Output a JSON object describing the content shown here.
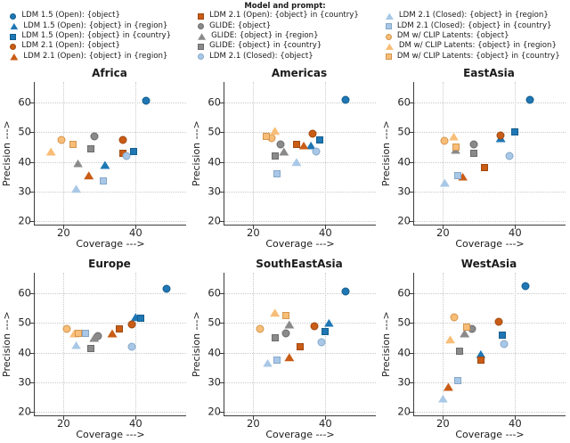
{
  "figure": {
    "legend": {
      "title": "Model and prompt:",
      "columns": [
        [
          0,
          1,
          2,
          3,
          4
        ],
        [
          5,
          6,
          7,
          8,
          9
        ],
        [
          10,
          11,
          12,
          13,
          14
        ]
      ]
    }
  },
  "chart_data": {
    "type": "scatter",
    "legend_title": "Model and prompt:",
    "xlabel": "Coverage --->",
    "ylabel": "Precision --->",
    "xticks": [
      20,
      40
    ],
    "yticks": [
      20,
      30,
      40,
      50,
      60
    ],
    "xlim": [
      12,
      54
    ],
    "ylim": [
      19,
      67
    ],
    "grid": "dotted",
    "series": [
      {
        "id": "ldm15-object",
        "label": "LDM 1.5 (Open): {object}",
        "marker": "circle",
        "color": "#1f77b4",
        "edge": "#155e8e"
      },
      {
        "id": "ldm15-region",
        "label": "LDM 1.5 (Open): {object} in {region}",
        "marker": "triangle",
        "color": "#1f77b4",
        "edge": "#155e8e"
      },
      {
        "id": "ldm15-country",
        "label": "LDM 1.5 (Open): {object} in {country}",
        "marker": "square",
        "color": "#1f77b4",
        "edge": "#155e8e"
      },
      {
        "id": "ldm21o-object",
        "label": "LDM 2.1 (Open): {object}",
        "marker": "circle",
        "color": "#c95c16",
        "edge": "#a1490f"
      },
      {
        "id": "ldm21o-region",
        "label": "LDM 2.1 (Open): {object} in {region}",
        "marker": "triangle",
        "color": "#c95c16",
        "edge": "#a1490f"
      },
      {
        "id": "ldm21o-country",
        "label": "LDM 2.1 (Open): {object} in {country}",
        "marker": "square",
        "color": "#c95c16",
        "edge": "#a1490f"
      },
      {
        "id": "glide-object",
        "label": "GLIDE: {object}",
        "marker": "circle",
        "color": "#8a8a8a",
        "edge": "#6b6b6b"
      },
      {
        "id": "glide-region",
        "label": "GLIDE: {object} in {region}",
        "marker": "triangle",
        "color": "#8a8a8a",
        "edge": "#6b6b6b"
      },
      {
        "id": "glide-country",
        "label": "GLIDE: {object} in {country}",
        "marker": "square",
        "color": "#8a8a8a",
        "edge": "#6b6b6b"
      },
      {
        "id": "ldm21c-object",
        "label": "LDM 2.1 (Closed): {object}",
        "marker": "circle",
        "color": "#a9c8e7",
        "edge": "#84a7c9"
      },
      {
        "id": "ldm21c-region",
        "label": "LDM 2.1 (Closed): {object} in {region}",
        "marker": "triangle",
        "color": "#a9c8e7",
        "edge": "#84a7c9"
      },
      {
        "id": "ldm21c-country",
        "label": "LDM 2.1 (Closed): {object} in {country}",
        "marker": "square",
        "color": "#a9c8e7",
        "edge": "#84a7c9"
      },
      {
        "id": "dm-object",
        "label": "DM w/ CLIP Latents: {object}",
        "marker": "circle",
        "color": "#f8bd77",
        "edge": "#d3964e"
      },
      {
        "id": "dm-region",
        "label": "DM w/ CLIP Latents: {object} in {region}",
        "marker": "triangle",
        "color": "#f8bd77",
        "edge": "#d3964e"
      },
      {
        "id": "dm-country",
        "label": "DM w/ CLIP Latents: {object} in {country}",
        "marker": "square",
        "color": "#f8bd77",
        "edge": "#d3964e"
      }
    ],
    "subplots": [
      {
        "title": "Africa",
        "points": [
          [
            43,
            60.5
          ],
          [
            31.5,
            39
          ],
          [
            39.5,
            43.5
          ],
          [
            36.5,
            47.5
          ],
          [
            27,
            35.5
          ],
          [
            36.5,
            43
          ],
          [
            28.5,
            48.5
          ],
          [
            24,
            39.5
          ],
          [
            27.5,
            44.5
          ],
          [
            37.5,
            42
          ],
          [
            23.5,
            31
          ],
          [
            31,
            33.5
          ],
          [
            19.5,
            47.5
          ],
          [
            16.5,
            43.5
          ],
          [
            22.5,
            46
          ]
        ]
      },
      {
        "title": "Americas",
        "points": [
          [
            45.5,
            61
          ],
          [
            36,
            45.5
          ],
          [
            38.5,
            47.5
          ],
          [
            36.5,
            49.5
          ],
          [
            34,
            45.5
          ],
          [
            32,
            46
          ],
          [
            27.5,
            46
          ],
          [
            28.5,
            43.5
          ],
          [
            26,
            42
          ],
          [
            37.5,
            43.5
          ],
          [
            32,
            40
          ],
          [
            26.5,
            36
          ],
          [
            25,
            48
          ],
          [
            26,
            50.5
          ],
          [
            23.5,
            48.5
          ]
        ]
      },
      {
        "title": "EastAsia",
        "points": [
          [
            44,
            61
          ],
          [
            36,
            48
          ],
          [
            40,
            50
          ],
          [
            36,
            49
          ],
          [
            25.5,
            35
          ],
          [
            31.5,
            38
          ],
          [
            28.5,
            46
          ],
          [
            23.5,
            44
          ],
          [
            28.5,
            43
          ],
          [
            38.5,
            42
          ],
          [
            20.5,
            33
          ],
          [
            24,
            35.5
          ],
          [
            20.5,
            47
          ],
          [
            23,
            48.5
          ],
          [
            23.5,
            45
          ]
        ]
      },
      {
        "title": "Europe",
        "points": [
          [
            48.5,
            61.5
          ],
          [
            40,
            52
          ],
          [
            41.5,
            51.5
          ],
          [
            39,
            49.5
          ],
          [
            33.5,
            46.5
          ],
          [
            35.5,
            48
          ],
          [
            29.5,
            45.5
          ],
          [
            28.5,
            45
          ],
          [
            27.5,
            41.5
          ],
          [
            39,
            42
          ],
          [
            23.5,
            42.5
          ],
          [
            26,
            46.5
          ],
          [
            21,
            48
          ],
          [
            23,
            46.5
          ],
          [
            24,
            46.5
          ]
        ]
      },
      {
        "title": "SouthEastAsia",
        "points": [
          [
            45.5,
            60.5
          ],
          [
            41,
            50
          ],
          [
            40,
            47
          ],
          [
            37,
            49
          ],
          [
            30,
            38.5
          ],
          [
            33,
            42
          ],
          [
            29,
            46.5
          ],
          [
            30,
            49.5
          ],
          [
            26,
            45
          ],
          [
            39,
            43.5
          ],
          [
            24,
            36.5
          ],
          [
            26.5,
            37.5
          ],
          [
            22,
            48
          ],
          [
            26,
            53.5
          ],
          [
            29,
            52.5
          ]
        ]
      },
      {
        "title": "WestAsia",
        "points": [
          [
            43,
            62.5
          ],
          [
            30.5,
            39.5
          ],
          [
            36.5,
            46
          ],
          [
            35.5,
            50.5
          ],
          [
            21.5,
            28.5
          ],
          [
            30.5,
            37.5
          ],
          [
            28,
            48
          ],
          [
            26,
            46.5
          ],
          [
            24.5,
            40.5
          ],
          [
            37,
            43
          ],
          [
            20,
            24.5
          ],
          [
            24,
            30.5
          ],
          [
            23,
            52
          ],
          [
            22,
            44.5
          ],
          [
            26.5,
            48.5
          ]
        ]
      }
    ]
  }
}
